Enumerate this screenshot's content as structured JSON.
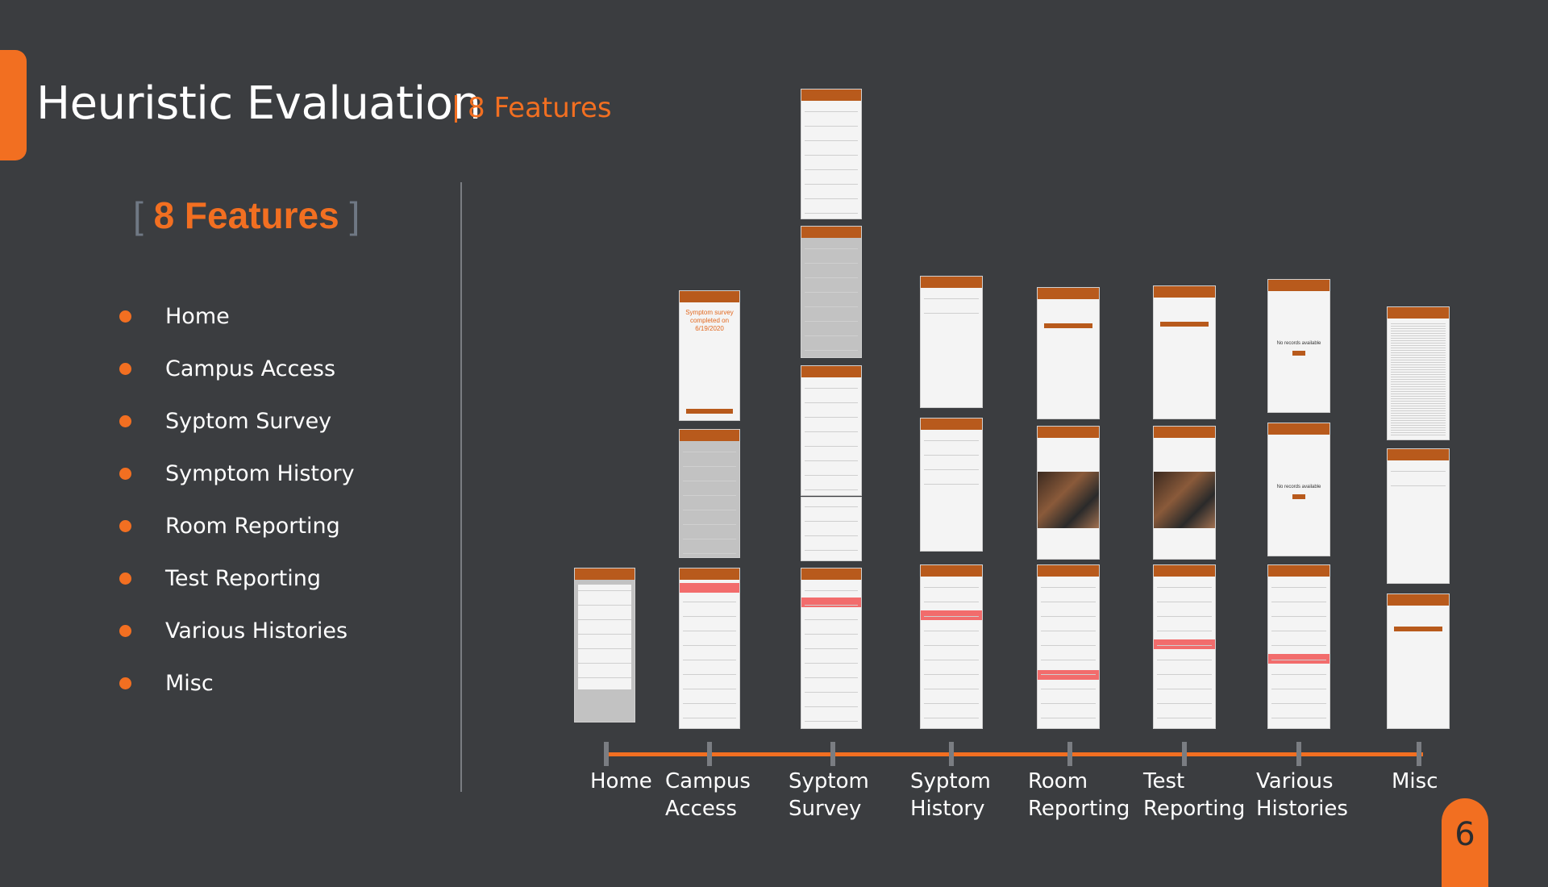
{
  "header": {
    "title": "Heuristic Evaluation",
    "subtitle": "8 Features"
  },
  "features_panel": {
    "heading": "8 Features",
    "bracket_open": "[",
    "bracket_close": "]",
    "items": [
      "Home",
      "Campus Access",
      "Syptom Survey",
      "Symptom History",
      "Room Reporting",
      "Test Reporting",
      "Various Histories",
      "Misc"
    ]
  },
  "timeline": {
    "labels": [
      {
        "line1": "Home",
        "line2": ""
      },
      {
        "line1": "Campus",
        "line2": "Access"
      },
      {
        "line1": "Syptom",
        "line2": "Survey"
      },
      {
        "line1": "Syptom",
        "line2": "History"
      },
      {
        "line1": "Room",
        "line2": "Reporting"
      },
      {
        "line1": "Test",
        "line2": "Reporting"
      },
      {
        "line1": "Various",
        "line2": "Histories"
      },
      {
        "line1": "Misc",
        "line2": ""
      }
    ]
  },
  "page_number": "6",
  "screens": {
    "symptom_survey_completed": "Symptom survey completed on 6/19/2020",
    "no_records_1": "No records available",
    "no_records_2": "No records available"
  },
  "colors": {
    "accent": "#f26f21",
    "background": "#3b3d40",
    "divider": "#7a7d82",
    "highlight": "#f26c6c"
  }
}
